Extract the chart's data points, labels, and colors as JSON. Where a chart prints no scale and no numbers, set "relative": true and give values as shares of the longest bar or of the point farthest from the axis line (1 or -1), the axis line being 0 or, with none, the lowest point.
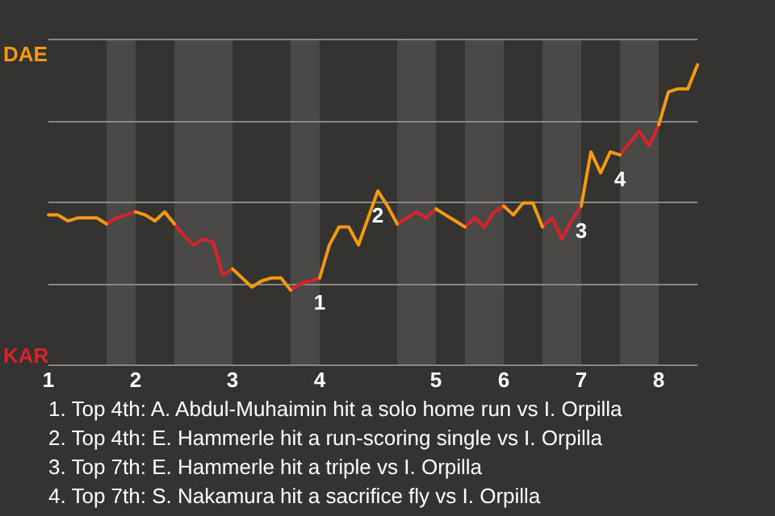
{
  "chart_data": {
    "type": "line",
    "relative": true,
    "categories": [
      "1",
      null,
      null,
      null,
      null,
      null,
      null,
      null,
      null,
      "2",
      null,
      null,
      null,
      null,
      null,
      null,
      null,
      null,
      null,
      "3",
      null,
      null,
      null,
      null,
      null,
      null,
      null,
      null,
      "4",
      null,
      null,
      null,
      null,
      null,
      null,
      null,
      null,
      null,
      null,
      null,
      "5",
      null,
      null,
      null,
      null,
      null,
      null,
      "6",
      null,
      null,
      null,
      null,
      null,
      null,
      null,
      "7",
      null,
      null,
      null,
      null,
      null,
      null,
      null,
      "8",
      null,
      null,
      null,
      null
    ],
    "series": [
      {
        "color": "#f39a12",
        "values": [
          0.5,
          0.5,
          0.48,
          0.49,
          0.49,
          0.49,
          0.47,
          null,
          null,
          0.51,
          0.5,
          0.48,
          0.51,
          0.47,
          null,
          null,
          null,
          null,
          null,
          0.32,
          0.29,
          0.26,
          0.28,
          0.29,
          0.29,
          0.25,
          null,
          null,
          0.29,
          0.4,
          0.46,
          0.46,
          0.4,
          0.49,
          0.58,
          0.53,
          0.47,
          null,
          null,
          null,
          0.52,
          0.5,
          0.48,
          0.46,
          null,
          null,
          null,
          0.53,
          0.5,
          0.54,
          0.54,
          0.46,
          null,
          null,
          null,
          0.53,
          0.71,
          0.64,
          0.71,
          0.7,
          null,
          null,
          null,
          0.8,
          0.91,
          0.92,
          0.92,
          1
        ]
      },
      {
        "color": "#d8232f",
        "values": [
          null,
          null,
          null,
          null,
          null,
          null,
          0.47,
          0.49,
          0.5,
          0.51,
          null,
          null,
          null,
          0.47,
          0.43,
          0.4,
          0.42,
          0.41,
          0.3,
          0.32,
          null,
          null,
          null,
          null,
          null,
          0.25,
          0.27,
          0.28,
          0.29,
          null,
          null,
          null,
          null,
          null,
          null,
          null,
          0.47,
          0.49,
          0.51,
          0.49,
          0.52,
          null,
          null,
          0.46,
          0.49,
          0.46,
          0.51,
          0.53,
          null,
          null,
          null,
          0.46,
          0.49,
          0.42,
          0.48,
          0.53,
          null,
          null,
          null,
          0.7,
          0.74,
          0.78,
          0.73,
          0.8,
          null,
          null,
          null,
          null
        ]
      }
    ],
    "grid": "y",
    "marker": "none",
    "line_style": "solid",
    "annotations": [
      "DAE",
      "KAR",
      {
        "text": "1",
        "x": "4",
        "y": 0.29
      },
      {
        "text": "2",
        "y": 0.58
      },
      {
        "text": "3",
        "x": "7",
        "y": 0.53
      },
      {
        "text": "4",
        "y": 0.7
      },
      "1. Top 4th: A. Abdul-Muhaimin hit a solo home run vs I. Orpilla",
      "2. Top 4th: E. Hammerle hit a run-scoring single vs I. Orpilla",
      "3. Top 7th: E. Hammerle hit a triple vs I. Orpilla",
      "4. Top 7th: S. Nakamura hit a sacrifice fly vs I. Orpilla"
    ]
  }
}
